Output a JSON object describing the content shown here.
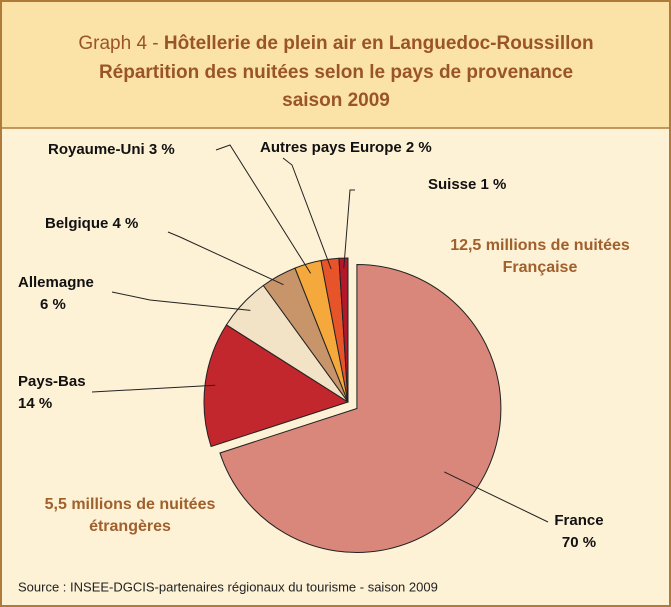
{
  "chart_data": {
    "type": "pie",
    "title_label": "Graph 4 -",
    "title": "Hôtellerie de plein air en Languedoc-Roussillon",
    "subtitle": [
      "Répartition des nuitées selon le pays de provenance",
      "saison 2009"
    ],
    "categories": [
      "France",
      "Pays-Bas",
      "Allemagne",
      "Belgique",
      "Royaume-Uni",
      "Autres pays Europe",
      "Suisse"
    ],
    "values": [
      70,
      14,
      6,
      4,
      3,
      2,
      1
    ],
    "value_labels": [
      "70 %",
      "14 %",
      "6 %",
      "4 %",
      "3 %",
      "2 %",
      "1 %"
    ],
    "colors": [
      "#d9877a",
      "#c1272d",
      "#f2e2c6",
      "#c8946a",
      "#f5a93c",
      "#e8542a",
      "#b3182a"
    ],
    "exploded": [
      0
    ],
    "annotations": [
      [
        "12,5 millions de nuitées",
        "Française"
      ],
      [
        "5,5 millions de nuitées",
        "étrangères"
      ]
    ],
    "source": "Source : INSEE-DGCIS-partenaires régionaux du tourisme - saison 2009"
  }
}
